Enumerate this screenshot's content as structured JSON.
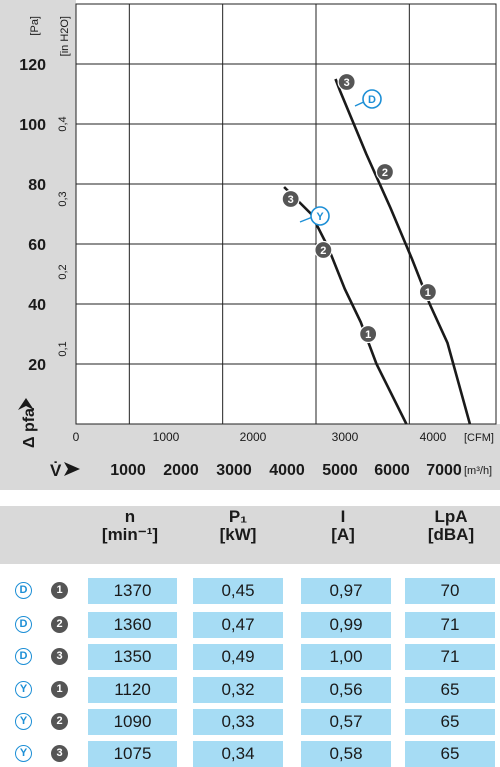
{
  "chart_data": {
    "type": "line",
    "y_unit_left": "[Pa]",
    "y_unit_inch": "[in H2O]",
    "y_label": "Δ pfa",
    "y_ticks_pa": [
      "120",
      "100",
      "80",
      "60",
      "40",
      "20"
    ],
    "y_ticks_inch": [
      "0,4",
      "0,3",
      "0,2",
      "0,1"
    ],
    "x_ticks_cfm": [
      "0",
      "1000",
      "2000",
      "3000",
      "4000"
    ],
    "x_unit_cfm": "[CFM]",
    "x_ticks_m3h": [
      "1000",
      "2000",
      "3000",
      "4000",
      "5000",
      "6000",
      "7000"
    ],
    "x_unit_m3h": "[m³/h]",
    "x_label": "V̇",
    "ylim_pa": [
      0,
      140
    ],
    "xlim_cfm": [
      0,
      4500
    ],
    "series": [
      {
        "name": "D",
        "points": [
          [
            2780,
            115
          ],
          [
            2830,
            111
          ],
          [
            3110,
            90
          ],
          [
            3370,
            72
          ],
          [
            3600,
            55
          ],
          [
            3790,
            40
          ],
          [
            3980,
            27
          ],
          [
            4220,
            0
          ]
        ],
        "markers": [
          {
            "label": "3",
            "x": 2900,
            "y": 114
          },
          {
            "label": "2",
            "x": 3310,
            "y": 84
          },
          {
            "label": "1",
            "x": 3770,
            "y": 44
          }
        ]
      },
      {
        "name": "Y",
        "points": [
          [
            2230,
            79
          ],
          [
            2520,
            70
          ],
          [
            2700,
            59
          ],
          [
            2880,
            45
          ],
          [
            3050,
            34
          ],
          [
            3220,
            20
          ],
          [
            3540,
            0
          ]
        ],
        "markers": [
          {
            "label": "3",
            "x": 2300,
            "y": 75
          },
          {
            "label": "2",
            "x": 2650,
            "y": 58
          },
          {
            "label": "1",
            "x": 3130,
            "y": 30
          }
        ]
      }
    ]
  },
  "table": {
    "headers": [
      {
        "l1": "n",
        "l2": "[min⁻¹]"
      },
      {
        "l1": "P₁",
        "l2": "[kW]"
      },
      {
        "l1": "I",
        "l2": "[A]"
      },
      {
        "l1": "LpA",
        "l2": "[dBA]"
      }
    ],
    "rows": [
      {
        "curve": "D",
        "point": "1",
        "values": [
          "1370",
          "0,45",
          "0,97",
          "70"
        ]
      },
      {
        "curve": "D",
        "point": "2",
        "values": [
          "1360",
          "0,47",
          "0,99",
          "71"
        ]
      },
      {
        "curve": "D",
        "point": "3",
        "values": [
          "1350",
          "0,49",
          "1,00",
          "71"
        ]
      },
      {
        "curve": "Y",
        "point": "1",
        "values": [
          "1120",
          "0,32",
          "0,56",
          "65"
        ]
      },
      {
        "curve": "Y",
        "point": "2",
        "values": [
          "1090",
          "0,33",
          "0,57",
          "65"
        ]
      },
      {
        "curve": "Y",
        "point": "3",
        "values": [
          "1075",
          "0,34",
          "0,58",
          "65"
        ]
      }
    ]
  },
  "colors": {
    "curve": "#1a1a1a",
    "badge_blue": "#1d8fd6",
    "badge_grey": "#555555",
    "cell_blue": "#a6dcf4",
    "band_grey": "#d9d9d9"
  }
}
